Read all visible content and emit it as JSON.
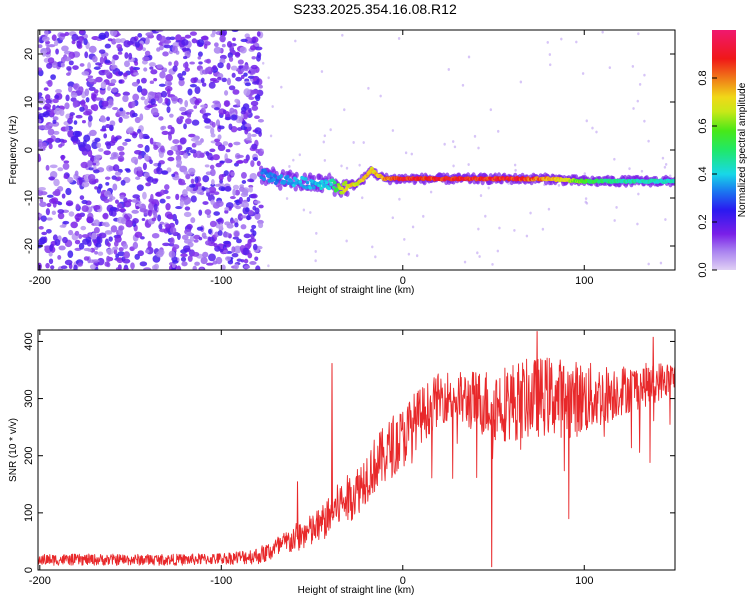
{
  "title": "S233.2025.354.16.08.R12",
  "colors": {
    "snr_line": "#e8282a",
    "spectrogram_scatter": "#7b1fe8",
    "frame": "#000000"
  },
  "chart_data": [
    {
      "type": "heatmap",
      "title": "S233.2025.354.16.08.R12",
      "xlabel": "Height of straight line (km)",
      "ylabel": "Frequency (Hz)",
      "xlim": [
        -201,
        150
      ],
      "ylim": [
        -25,
        25
      ],
      "xticks": [
        -200,
        -100,
        0,
        100
      ],
      "yticks": [
        -20,
        -10,
        0,
        10,
        20
      ],
      "colorbar": {
        "label": "Normalized spectral amplitude",
        "range": [
          0.0,
          1.0
        ],
        "ticks": [
          0.0,
          0.2,
          0.4,
          0.6,
          0.8
        ],
        "colormap": "rainbow (purple-blue-cyan-green-yellow-red-magenta)"
      },
      "grid": false,
      "tone_track": {
        "x": [
          -78,
          -70,
          -60,
          -50,
          -40,
          -34,
          -30,
          -25,
          -20,
          -17,
          -15,
          -10,
          -5,
          0,
          20,
          40,
          60,
          80,
          100,
          120,
          150
        ],
        "frequency": [
          -5,
          -6,
          -6.5,
          -7,
          -7,
          -8,
          -7.5,
          -7,
          -5.5,
          -4,
          -5,
          -6,
          -6,
          -6,
          -6,
          -6,
          -6,
          -6,
          -6.5,
          -6.5,
          -6.5
        ],
        "amplitude": [
          0.35,
          0.35,
          0.4,
          0.4,
          0.45,
          0.7,
          0.75,
          0.75,
          0.8,
          0.8,
          0.8,
          0.85,
          0.9,
          0.95,
          0.95,
          0.95,
          0.95,
          0.85,
          0.6,
          0.5,
          0.45
        ]
      },
      "noise_region": {
        "x_range": [
          -201,
          -78
        ],
        "frequency_range": [
          -25,
          25
        ],
        "amplitude": 0.05
      }
    },
    {
      "type": "line",
      "xlabel": "Height of straight line (km)",
      "ylabel": "SNR (10 * v/v)",
      "xlim": [
        -201,
        150
      ],
      "ylim": [
        0,
        420
      ],
      "xticks": [
        -200,
        -100,
        0,
        100
      ],
      "yticks": [
        0,
        100,
        200,
        300,
        400
      ],
      "grid": false,
      "series": [
        {
          "x": [
            -200,
            -180,
            -160,
            -140,
            -120,
            -100,
            -90,
            -80,
            -75,
            -70,
            -65,
            -60,
            -55,
            -50,
            -45,
            -40,
            -35,
            -30,
            -25,
            -20,
            -15,
            -10,
            -5,
            0,
            5,
            10,
            15,
            20,
            25,
            30,
            40,
            50,
            60,
            70,
            80,
            90,
            100,
            110,
            120,
            130,
            140,
            150
          ],
          "mean": [
            18,
            18,
            18,
            18,
            18,
            20,
            22,
            25,
            30,
            38,
            45,
            55,
            62,
            68,
            80,
            95,
            115,
            125,
            140,
            165,
            185,
            200,
            220,
            230,
            255,
            270,
            285,
            300,
            305,
            300,
            295,
            290,
            295,
            300,
            305,
            300,
            300,
            305,
            315,
            320,
            330,
            335
          ],
          "spread": [
            20,
            20,
            20,
            20,
            20,
            20,
            25,
            30,
            35,
            40,
            45,
            50,
            55,
            60,
            65,
            70,
            80,
            85,
            90,
            95,
            100,
            105,
            110,
            110,
            105,
            100,
            95,
            90,
            90,
            95,
            110,
            130,
            140,
            140,
            140,
            140,
            130,
            110,
            90,
            80,
            70,
            60
          ],
          "x_step_km": 0.25,
          "notable_values": [
            {
              "x": -39,
              "y": 362
            },
            {
              "x": -58,
              "y": 155
            },
            {
              "x": 49,
              "y": 5
            },
            {
              "x": 74,
              "y": 418
            },
            {
              "x": 138,
              "y": 408
            }
          ]
        }
      ]
    }
  ]
}
